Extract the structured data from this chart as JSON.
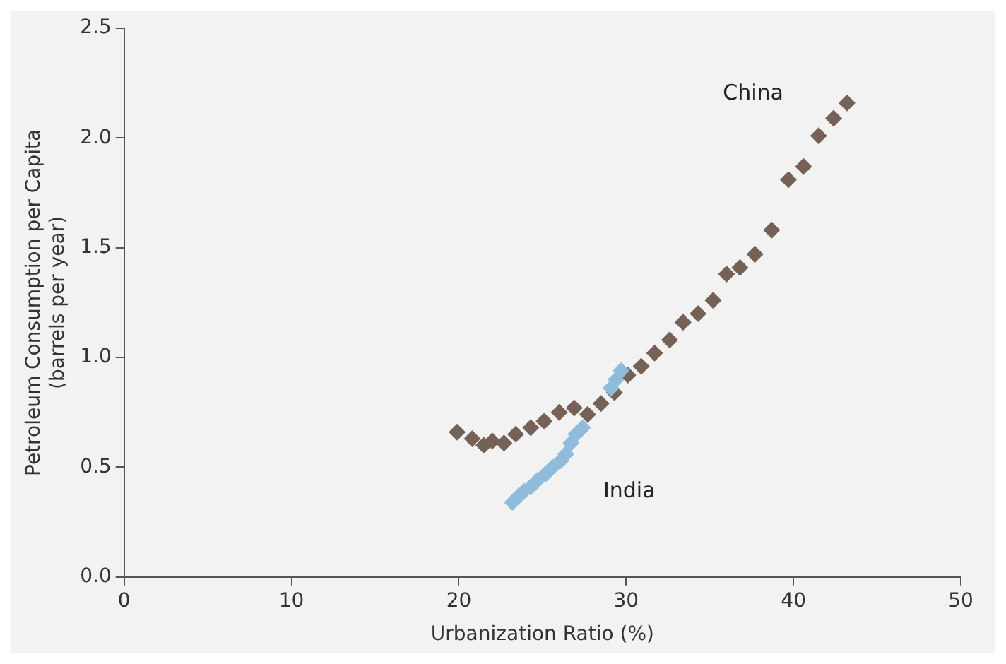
{
  "chart_data": {
    "type": "scatter",
    "xlabel": "Urbanization Ratio (%)",
    "ylabel": "Petroleum Consumption per Capita\n(barrels per year)",
    "xlim": [
      0,
      50
    ],
    "xticks": [
      0,
      10,
      20,
      30,
      40,
      50
    ],
    "ylim": [
      0,
      2.5
    ],
    "yticks": [
      {
        "value": 0,
        "label": "0.0"
      },
      {
        "value": 0.5,
        "label": "0.5"
      },
      {
        "value": 1,
        "label": "1.0"
      },
      {
        "value": 1.5,
        "label": "1.5"
      },
      {
        "value": 2,
        "label": "2.0"
      },
      {
        "value": 2.5,
        "label": "2.5"
      }
    ],
    "grid": false,
    "legend": false,
    "marker": "diamond",
    "series": [
      {
        "name": "China",
        "color": "#766156",
        "x": [
          19.9,
          20.8,
          21.5,
          22.0,
          22.7,
          23.4,
          24.3,
          25.1,
          26.0,
          26.9,
          27.7,
          28.5,
          29.3,
          30.1,
          30.9,
          31.7,
          32.6,
          33.4,
          34.3,
          35.2,
          36.0,
          36.8,
          37.7,
          38.7,
          39.7,
          40.6,
          41.5,
          42.4,
          43.2
        ],
        "values": [
          0.66,
          0.63,
          0.6,
          0.62,
          0.61,
          0.65,
          0.68,
          0.71,
          0.75,
          0.77,
          0.74,
          0.79,
          0.84,
          0.92,
          0.96,
          1.02,
          1.08,
          1.16,
          1.2,
          1.26,
          1.38,
          1.41,
          1.47,
          1.58,
          1.81,
          1.87,
          2.01,
          2.09,
          2.16
        ]
      },
      {
        "name": "India",
        "color": "#8fbcdb",
        "x": [
          23.2,
          23.6,
          23.9,
          24.3,
          24.7,
          25.2,
          25.6,
          26.1,
          26.4,
          26.7,
          27.0,
          27.4,
          29.1,
          29.4,
          29.7
        ],
        "values": [
          0.34,
          0.37,
          0.39,
          0.41,
          0.44,
          0.47,
          0.5,
          0.53,
          0.56,
          0.61,
          0.65,
          0.68,
          0.86,
          0.9,
          0.94
        ]
      }
    ]
  }
}
